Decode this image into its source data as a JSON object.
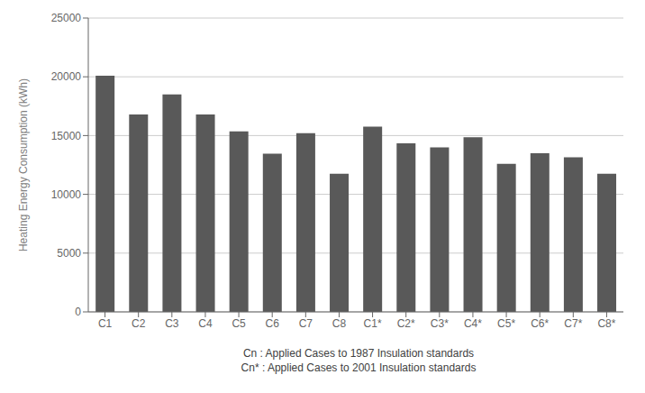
{
  "chart_data": {
    "type": "bar",
    "categories": [
      "C1",
      "C2",
      "C3",
      "C4",
      "C5",
      "C6",
      "C7",
      "C8",
      "C1*",
      "C2*",
      "C3*",
      "C4*",
      "C5*",
      "C6*",
      "C7*",
      "C8*"
    ],
    "values": [
      20100,
      16800,
      18500,
      16800,
      15350,
      13450,
      15200,
      11750,
      15750,
      14350,
      14000,
      14850,
      12600,
      13500,
      13150,
      11750
    ],
    "color": "#595959",
    "ylabel": "Heating Energy Consumption (kWh)",
    "xlabel": "Cn : Applied Cases to 1987 Insulation standards\nCn* : Applied Cases to 2001 Insulation standards",
    "ylim": [
      0,
      25000
    ],
    "yticks": [
      0,
      5000,
      10000,
      15000,
      20000,
      25000
    ],
    "grid": true
  }
}
